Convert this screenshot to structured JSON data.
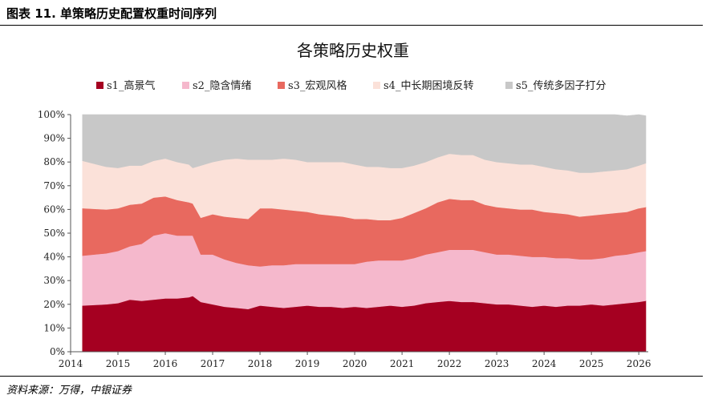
{
  "header": {
    "title": "图表 11. 单策略历史配置权重时间序列"
  },
  "footer": {
    "source": "资料来源：万得，中银证券"
  },
  "chart_data": {
    "type": "area",
    "stacked": true,
    "title": "各策略历史权重",
    "xlabel": "",
    "ylabel": "",
    "ylim": [
      0,
      100
    ],
    "y_ticks": [
      "0%",
      "10%",
      "20%",
      "30%",
      "40%",
      "50%",
      "60%",
      "70%",
      "80%",
      "90%",
      "100%"
    ],
    "x_range": [
      2014,
      2026.2
    ],
    "x_ticks": [
      "2014",
      "2015",
      "2016",
      "2017",
      "2018",
      "2019",
      "2020",
      "2021",
      "2022",
      "2023",
      "2024",
      "2025",
      "2026"
    ],
    "grid": false,
    "legend_position": "top",
    "x": [
      2014.25,
      2014.75,
      2015.0,
      2015.25,
      2015.5,
      2015.75,
      2016.0,
      2016.25,
      2016.5,
      2016.58,
      2016.75,
      2017.0,
      2017.25,
      2017.5,
      2017.75,
      2018.0,
      2018.25,
      2018.5,
      2018.75,
      2019.0,
      2019.25,
      2019.5,
      2019.75,
      2020.0,
      2020.25,
      2020.5,
      2020.75,
      2021.0,
      2021.25,
      2021.5,
      2021.75,
      2022.0,
      2022.25,
      2022.5,
      2022.75,
      2023.0,
      2023.25,
      2023.5,
      2023.75,
      2024.0,
      2024.25,
      2024.5,
      2024.75,
      2025.0,
      2025.25,
      2025.5,
      2025.75,
      2026.0,
      2026.15
    ],
    "series": [
      {
        "name": "s1_高景气",
        "color": "#a50021",
        "values": [
          19.5,
          20,
          20.5,
          22,
          21.5,
          22,
          22.5,
          22.5,
          23,
          23.5,
          21,
          20,
          19,
          18.5,
          18,
          19.5,
          19,
          18.5,
          19,
          19.5,
          19,
          19,
          18.5,
          19,
          18.5,
          19,
          19.5,
          19,
          19.5,
          20.5,
          21,
          21.5,
          21,
          21,
          20.5,
          20,
          20,
          19.5,
          19,
          19.5,
          19,
          19.5,
          19.5,
          20,
          19.5,
          20,
          20.5,
          21,
          21.5
        ]
      },
      {
        "name": "s2_隐含情绪",
        "color": "#f5b8cc",
        "values": [
          21,
          21.5,
          22,
          22.5,
          24,
          27,
          27.5,
          26.5,
          26,
          25.5,
          20,
          21,
          20,
          19,
          18.5,
          16.5,
          17.5,
          18,
          18,
          17.5,
          18,
          18,
          18.5,
          18,
          19.5,
          19.5,
          19,
          19.5,
          20,
          20.5,
          21,
          21.5,
          22,
          22,
          21.5,
          21,
          21,
          21,
          21,
          20.5,
          20.5,
          20,
          19.5,
          19,
          20,
          20.5,
          20.5,
          21,
          21
        ]
      },
      {
        "name": "s3_宏观风格",
        "color": "#e8695f",
        "values": [
          20,
          18.5,
          18,
          17.5,
          17,
          16,
          15.5,
          15,
          14,
          13.5,
          15.5,
          17,
          18,
          19,
          19.5,
          24.5,
          24,
          23.5,
          22.5,
          22,
          21,
          20.5,
          20,
          19,
          18,
          17,
          17,
          18,
          19,
          19.5,
          21,
          21.5,
          21,
          21,
          20,
          20,
          19.5,
          19.5,
          20,
          19,
          19,
          18.5,
          18,
          18.5,
          18.5,
          18,
          18,
          18.5,
          18.5
        ]
      },
      {
        "name": "s4_中长期困境反转",
        "color": "#fbe1d9",
        "values": [
          20,
          18,
          17,
          16.5,
          16,
          15.5,
          16,
          16,
          16,
          15,
          22,
          22,
          24,
          25,
          25,
          20.5,
          20.5,
          21.5,
          21.5,
          21,
          22,
          22.5,
          23,
          23,
          22,
          22.5,
          22,
          21,
          20,
          19.5,
          19,
          19,
          19,
          19,
          19,
          19,
          19,
          19,
          19,
          19,
          18.5,
          18.5,
          18.5,
          18,
          18,
          18,
          18,
          18,
          18.5
        ]
      },
      {
        "name": "s5_传统多因子打分",
        "color": "#c8c8c8",
        "values": [
          19.5,
          22,
          22.5,
          21.5,
          21.5,
          19.5,
          18.5,
          20,
          21,
          22.5,
          21.5,
          20,
          19,
          18.5,
          19,
          19,
          19,
          18.5,
          19,
          20,
          20,
          20,
          20,
          21,
          22,
          22,
          22.5,
          22.5,
          21.5,
          20,
          18,
          16.5,
          17,
          17,
          19,
          20,
          20.5,
          21,
          21,
          22,
          23,
          23.5,
          24.5,
          24.5,
          24,
          23.5,
          22.5,
          21.5,
          20
        ]
      }
    ]
  }
}
